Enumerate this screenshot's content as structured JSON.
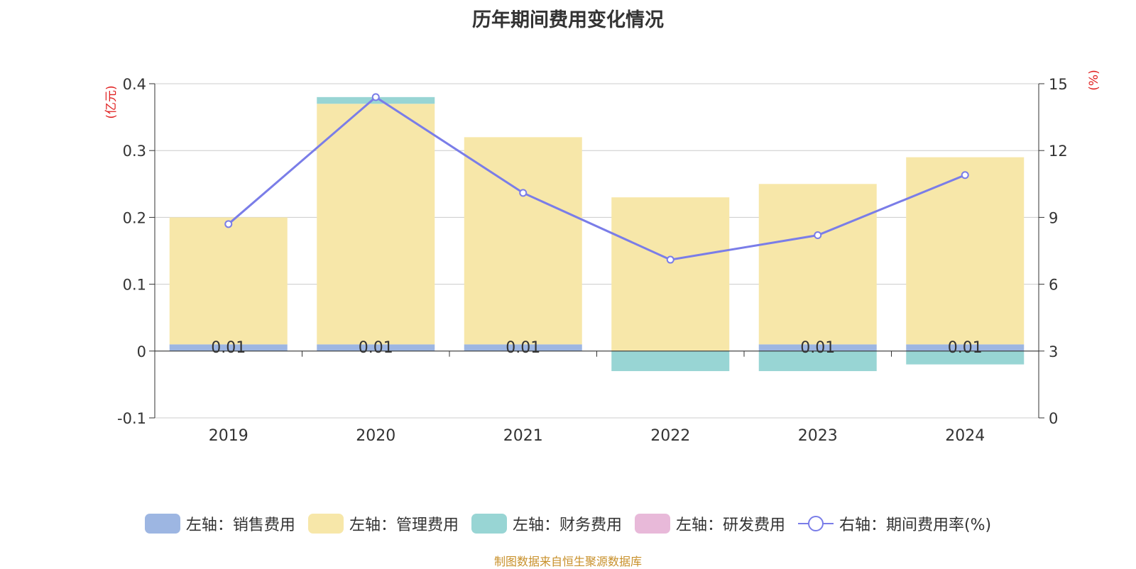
{
  "chart_data": {
    "type": "bar",
    "title": "历年期间费用变化情况",
    "categories": [
      "2019",
      "2020",
      "2021",
      "2022",
      "2023",
      "2024"
    ],
    "series": [
      {
        "name": "左轴：销售费用",
        "axis": "left",
        "kind": "bar",
        "color": "#9db6e2",
        "values": [
          0.01,
          0.01,
          0.01,
          0,
          0.01,
          0.01
        ]
      },
      {
        "name": "左轴：管理费用",
        "axis": "left",
        "kind": "bar",
        "color": "#f7e7a9",
        "values": [
          0.19,
          0.36,
          0.31,
          0.23,
          0.24,
          0.28
        ]
      },
      {
        "name": "左轴：财务费用",
        "axis": "left",
        "kind": "bar",
        "color": "#98d5d4",
        "values": [
          0,
          0.01,
          0,
          -0.03,
          -0.03,
          -0.02
        ]
      },
      {
        "name": "左轴：研发费用",
        "axis": "left",
        "kind": "bar",
        "color": "#e8b9d9",
        "values": [
          0,
          0,
          0,
          0,
          0,
          0
        ]
      },
      {
        "name": "右轴：期间费用率(%)",
        "axis": "right",
        "kind": "line",
        "color": "#7a7de8",
        "values": [
          8.7,
          14.4,
          10.1,
          7.1,
          8.2,
          10.9
        ]
      }
    ],
    "bar_labels": [
      "0.01",
      "0.01",
      "0.01",
      "",
      "0.01",
      "0.01"
    ],
    "y_left": {
      "unit": "(亿元)",
      "ylim": [
        -0.1,
        0.4
      ],
      "ticks": [
        "-0.1",
        "0",
        "0.1",
        "0.2",
        "0.3",
        "0.4"
      ]
    },
    "y_right": {
      "unit": "(%)",
      "ylim": [
        0,
        15
      ],
      "ticks": [
        "0",
        "3",
        "6",
        "9",
        "12",
        "15"
      ]
    },
    "grid": true,
    "legend_position": "bottom",
    "source": "制图数据来自恒生聚源数据库"
  }
}
